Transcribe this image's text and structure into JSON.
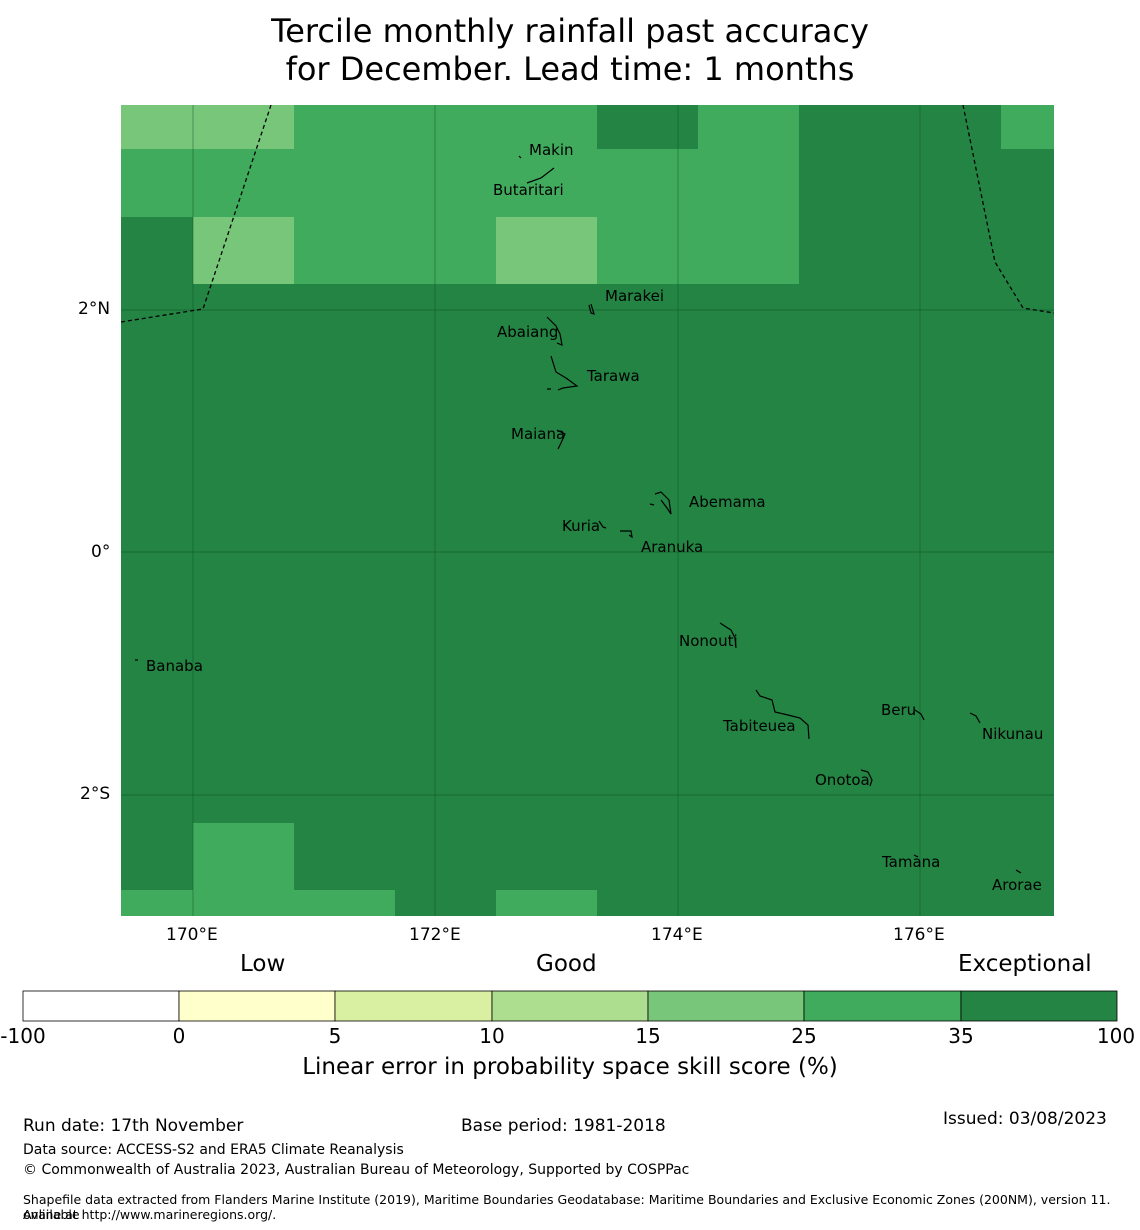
{
  "title": {
    "line1": "Tercile monthly rainfall past accuracy",
    "line2": "for December. Lead time: 1 months"
  },
  "axes": {
    "lon_labels": [
      "170°E",
      "172°E",
      "174°E",
      "176°E"
    ],
    "lat_labels": [
      "2°N",
      "0°",
      "2°S"
    ]
  },
  "places": [
    "Makin",
    "Butaritari",
    "Marakei",
    "Abaiang",
    "Tarawa",
    "Maiana",
    "Abemama",
    "Kuria",
    "Aranuka",
    "Nonouti",
    "Banaba",
    "Beru",
    "Tabiteuea",
    "Nikunau",
    "Onotoa",
    "Tamana",
    "Arorae"
  ],
  "legend": {
    "categories": [
      "Low",
      "Good",
      "Exceptional"
    ],
    "ticks": [
      "-100",
      "0",
      "5",
      "10",
      "15",
      "25",
      "35",
      "100"
    ],
    "colors": [
      "#ffffff",
      "#ffffcc",
      "#d9f0a3",
      "#addd8e",
      "#78c679",
      "#41ab5d",
      "#238443"
    ],
    "title": "Linear error in probability space skill score (%)"
  },
  "footer": {
    "run_date": "Run date: 17th November",
    "base_period": "Base period: 1981-2018",
    "issued": "Issued: 03/08/2023",
    "data_source": "Data source: ACCESS-S2 and ERA5 Climate Reanalysis",
    "copyright": "© Commonwealth of Australia 2023, Australian Bureau of Meteorology, Supported by COSPPac",
    "shapefile_line1": "Shapefile data extracted from Flanders Marine Institute (2019), Maritime Boundaries Geodatabase: Maritime Boundaries and Exclusive Economic Zones (200NM), version 11. Available",
    "shapefile_line2": "online at http://www.marineregions.org/."
  }
}
